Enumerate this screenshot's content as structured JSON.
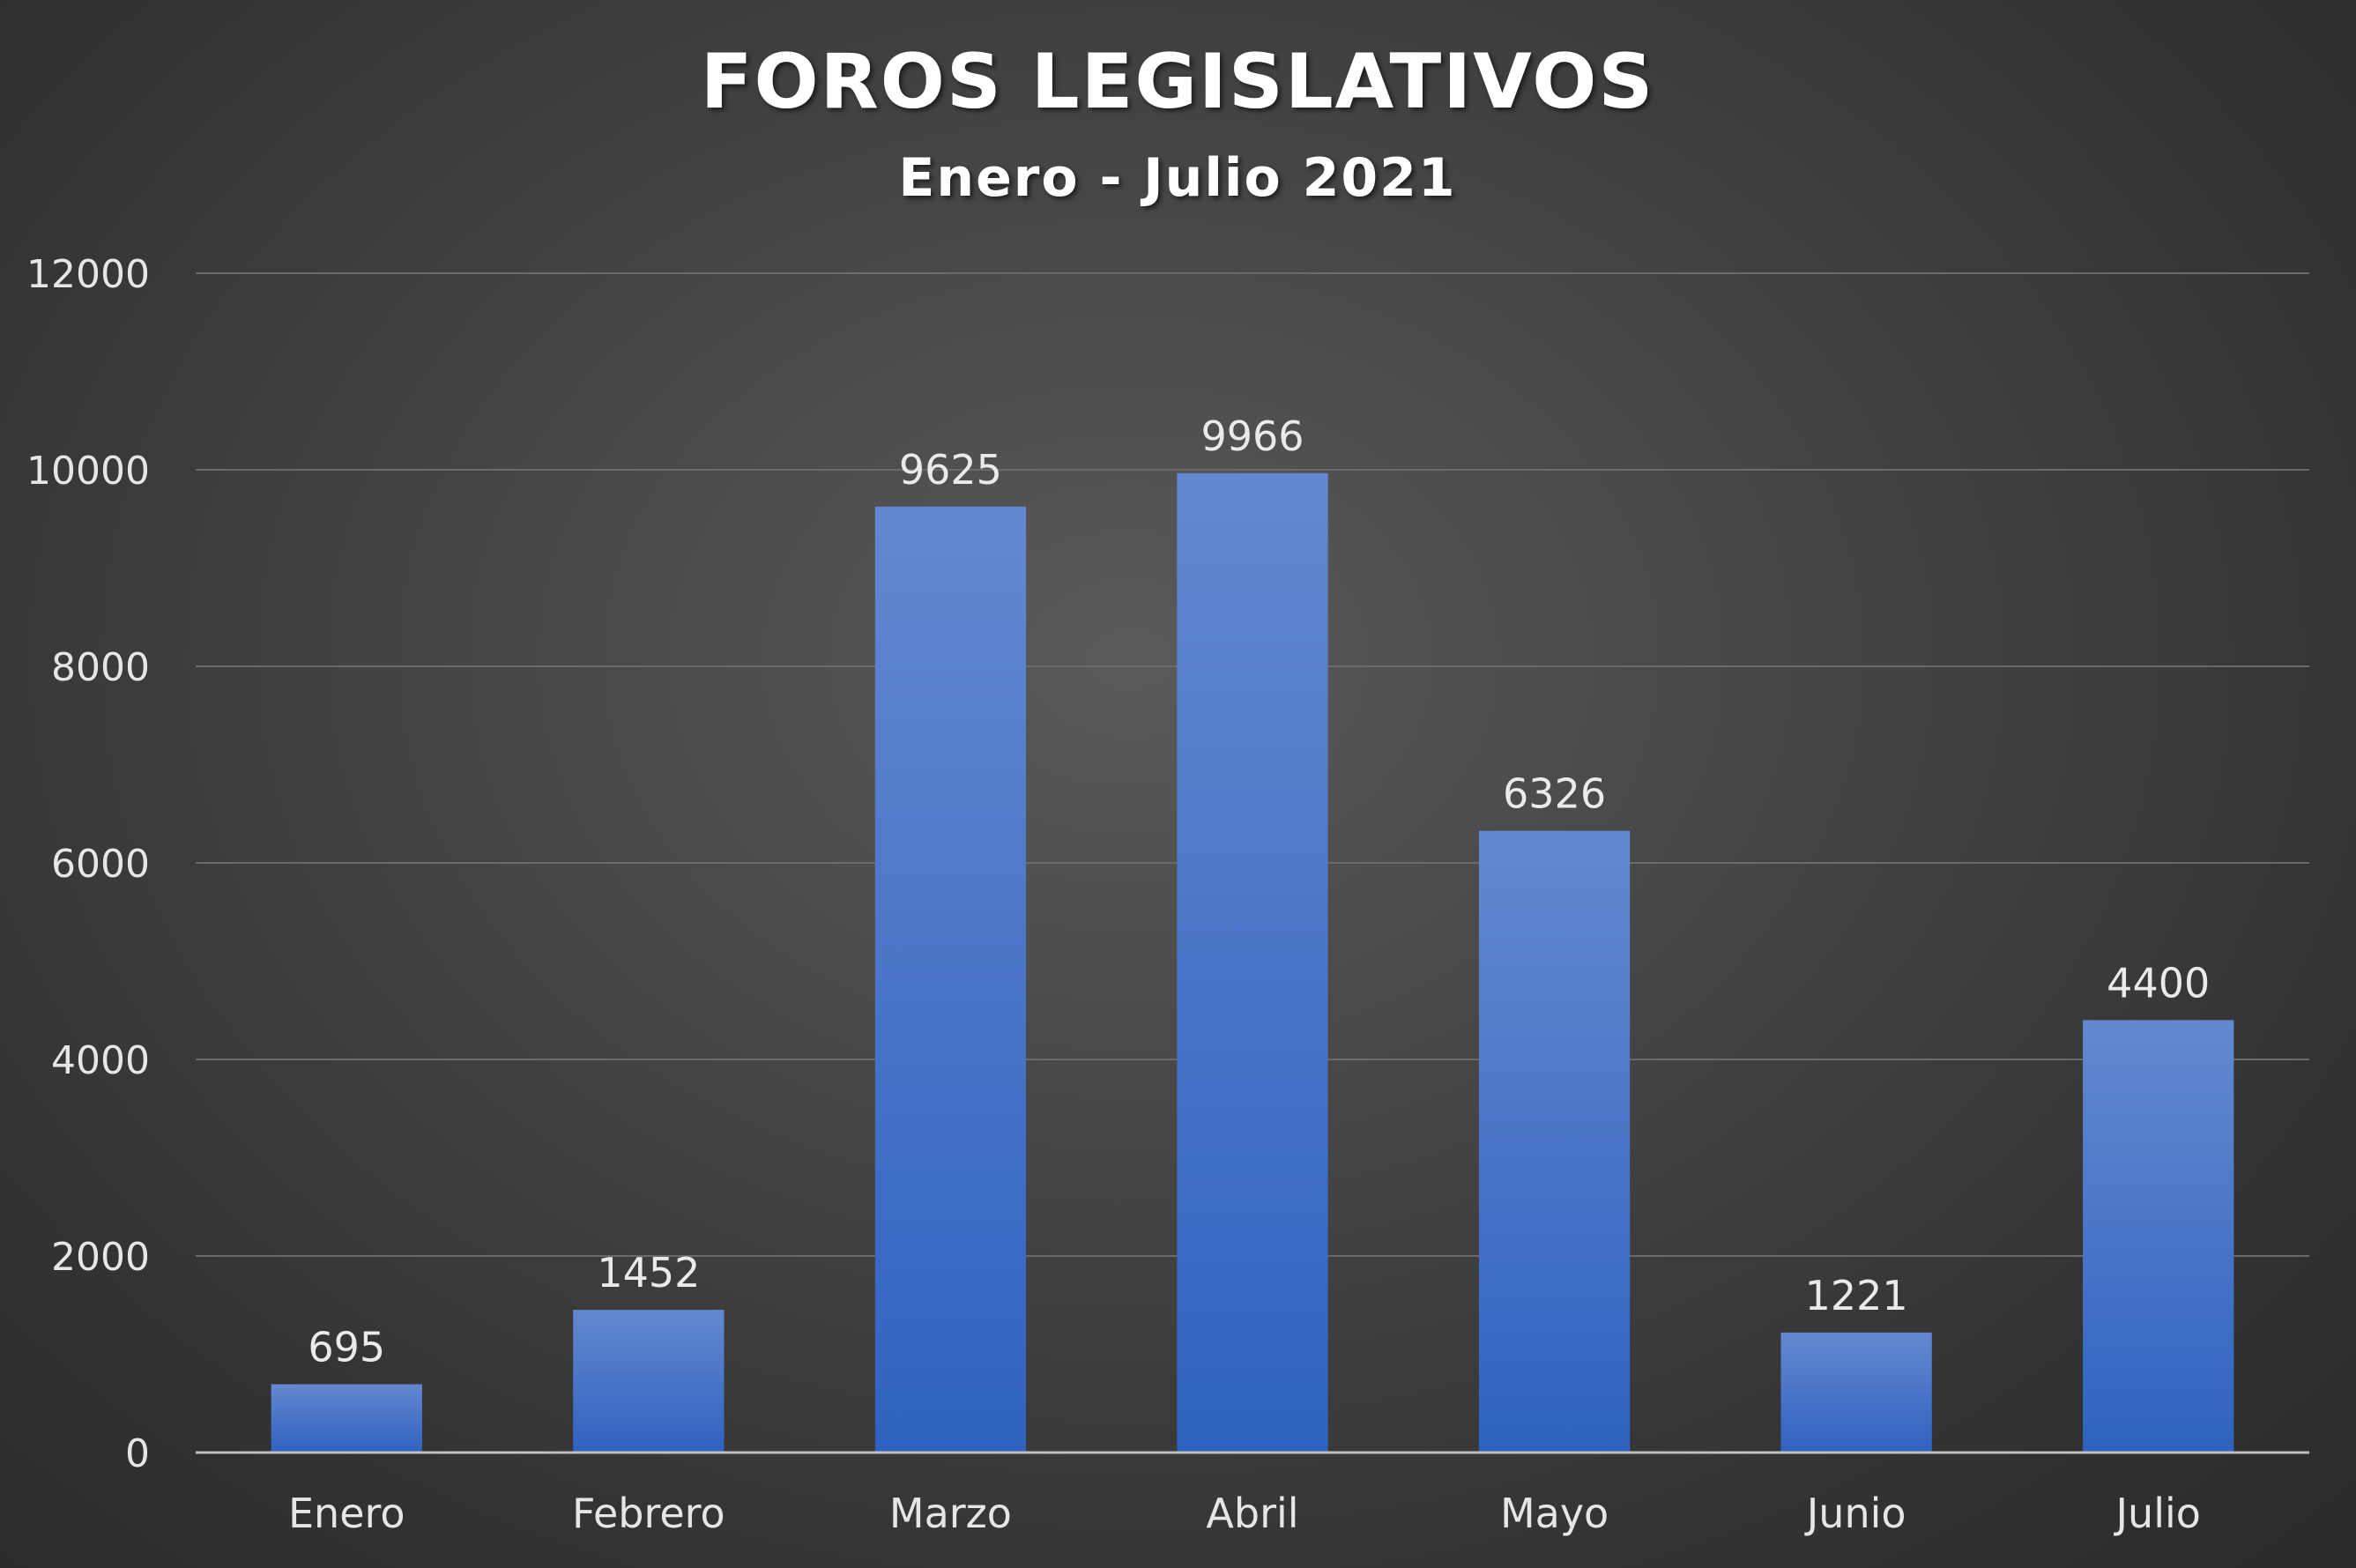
{
  "chart_data": {
    "type": "bar",
    "title": "FOROS LEGISLATIVOS",
    "subtitle": "Enero - Julio 2021",
    "categories": [
      "Enero",
      "Febrero",
      "Marzo",
      "Abril",
      "Mayo",
      "Junio",
      "Julio"
    ],
    "values": [
      695,
      1452,
      9625,
      9966,
      6326,
      1221,
      4400
    ],
    "data_labels": [
      "695",
      "1452",
      "9625",
      "9966",
      "6326",
      "1221",
      "4400"
    ],
    "ylim": [
      0,
      12000
    ],
    "yticks": [
      0,
      2000,
      4000,
      6000,
      8000,
      10000,
      12000
    ],
    "ytick_labels": [
      "0",
      "2000",
      "4000",
      "6000",
      "8000",
      "10000",
      "12000"
    ],
    "grid": true,
    "legend": "none",
    "bar_color": "#4a78cf",
    "bar_color_top": "#6488d0",
    "bar_color_bottom": "#2f62c0",
    "background_color": "#3f3f3f"
  }
}
